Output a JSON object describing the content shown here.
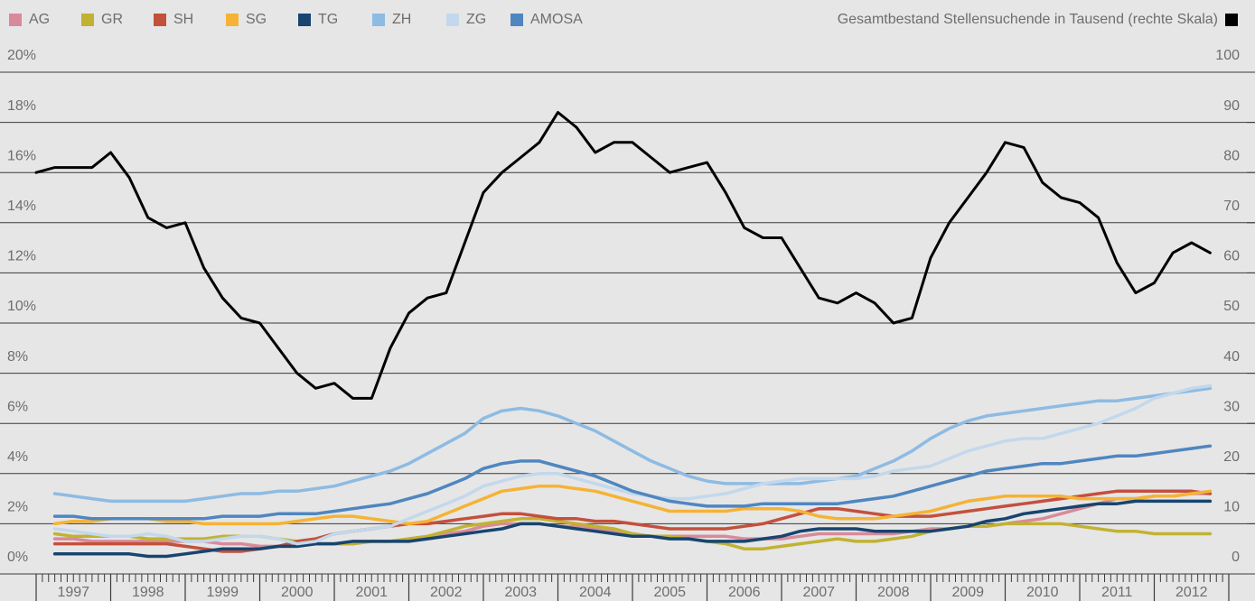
{
  "chart_data": {
    "type": "line",
    "x": [
      1997,
      1997.25,
      1997.5,
      1997.75,
      1998,
      1998.25,
      1998.5,
      1998.75,
      1999,
      1999.25,
      1999.5,
      1999.75,
      2000,
      2000.25,
      2000.5,
      2000.75,
      2001,
      2001.25,
      2001.5,
      2001.75,
      2002,
      2002.25,
      2002.5,
      2002.75,
      2003,
      2003.25,
      2003.5,
      2003.75,
      2004,
      2004.25,
      2004.5,
      2004.75,
      2005,
      2005.25,
      2005.5,
      2005.75,
      2006,
      2006.25,
      2006.5,
      2006.75,
      2007,
      2007.25,
      2007.5,
      2007.75,
      2008,
      2008.25,
      2008.5,
      2008.75,
      2009,
      2009.25,
      2009.5,
      2009.75,
      2010,
      2010.25,
      2010.5,
      2010.75,
      2011,
      2011.25,
      2011.5,
      2011.75,
      2012,
      2012.25,
      2012.5,
      2012.75
    ],
    "xlim": [
      1997,
      2013
    ],
    "xticks": [
      1997,
      1998,
      1999,
      2000,
      2001,
      2002,
      2003,
      2004,
      2005,
      2006,
      2007,
      2008,
      2009,
      2010,
      2011,
      2012,
      2013
    ],
    "x_labels": [
      "1997",
      "1998",
      "1999",
      "2000",
      "2001",
      "2002",
      "2003",
      "2004",
      "2005",
      "2006",
      "2007",
      "2008",
      "2009",
      "2010",
      "2011",
      "2012"
    ],
    "ylim": [
      0,
      20
    ],
    "yticks": [
      {
        "value": 0,
        "label": "0%"
      },
      {
        "value": 2,
        "label": "2%"
      },
      {
        "value": 4,
        "label": "4%"
      },
      {
        "value": 6,
        "label": "6%"
      },
      {
        "value": 8,
        "label": "8%"
      },
      {
        "value": 10,
        "label": "10%"
      },
      {
        "value": 12,
        "label": "12%"
      },
      {
        "value": 14,
        "label": "14%"
      },
      {
        "value": 16,
        "label": "16%"
      },
      {
        "value": 18,
        "label": "18%"
      },
      {
        "value": 20,
        "label": "20%"
      }
    ],
    "y2lim": [
      0,
      100
    ],
    "y2ticks": [
      0,
      10,
      20,
      30,
      40,
      50,
      60,
      70,
      80,
      90,
      100
    ],
    "grid": true,
    "series": [
      {
        "name": "AG",
        "color": "#d98a9a",
        "values": [
          null,
          1.4,
          1.4,
          1.3,
          1.3,
          1.3,
          1.3,
          1.3,
          1.3,
          1.3,
          1.2,
          1.2,
          1.1,
          1.1,
          1.1,
          1.2,
          1.2,
          1.2,
          1.3,
          1.3,
          1.4,
          1.5,
          1.6,
          1.7,
          1.9,
          2.0,
          2.0,
          2.0,
          1.9,
          1.9,
          1.8,
          1.7,
          1.6,
          1.5,
          1.5,
          1.5,
          1.5,
          1.5,
          1.4,
          1.4,
          1.4,
          1.5,
          1.6,
          1.6,
          1.6,
          1.6,
          1.6,
          1.7,
          1.8,
          1.8,
          1.9,
          1.9,
          2.0,
          2.1,
          2.2,
          2.4,
          2.6,
          2.8,
          3.0,
          3.0,
          3.1,
          3.1,
          3.2,
          3.2
        ]
      },
      {
        "name": "GR",
        "color": "#c2b232",
        "values": [
          null,
          1.6,
          1.5,
          1.5,
          1.5,
          1.5,
          1.4,
          1.4,
          1.4,
          1.4,
          1.5,
          1.5,
          1.5,
          1.4,
          1.3,
          1.2,
          1.2,
          1.2,
          1.3,
          1.3,
          1.4,
          1.5,
          1.7,
          1.9,
          2.0,
          2.1,
          2.2,
          2.2,
          2.1,
          2.0,
          1.9,
          1.8,
          1.6,
          1.5,
          1.5,
          1.4,
          1.3,
          1.2,
          1.0,
          1.0,
          1.1,
          1.2,
          1.3,
          1.4,
          1.3,
          1.3,
          1.4,
          1.5,
          1.7,
          1.8,
          1.9,
          1.9,
          2.0,
          2.0,
          2.0,
          2.0,
          1.9,
          1.8,
          1.7,
          1.7,
          1.6,
          1.6,
          1.6,
          1.6
        ]
      },
      {
        "name": "SH",
        "color": "#c4503c",
        "values": [
          null,
          1.2,
          1.2,
          1.2,
          1.2,
          1.2,
          1.2,
          1.2,
          1.1,
          1.0,
          0.9,
          0.9,
          1.0,
          1.1,
          1.3,
          1.4,
          1.6,
          1.7,
          1.8,
          1.9,
          2.0,
          2.0,
          2.1,
          2.2,
          2.3,
          2.4,
          2.4,
          2.3,
          2.2,
          2.2,
          2.1,
          2.1,
          2.0,
          1.9,
          1.8,
          1.8,
          1.8,
          1.8,
          1.9,
          2.0,
          2.2,
          2.4,
          2.6,
          2.6,
          2.5,
          2.4,
          2.3,
          2.3,
          2.3,
          2.4,
          2.5,
          2.6,
          2.7,
          2.8,
          2.9,
          3.0,
          3.1,
          3.2,
          3.3,
          3.3,
          3.3,
          3.3,
          3.3,
          3.2
        ]
      },
      {
        "name": "SG",
        "color": "#f5b335",
        "values": [
          null,
          2.0,
          2.1,
          2.1,
          2.2,
          2.2,
          2.2,
          2.1,
          2.1,
          2.0,
          2.0,
          2.0,
          2.0,
          2.0,
          2.1,
          2.2,
          2.3,
          2.3,
          2.2,
          2.1,
          2.0,
          2.1,
          2.4,
          2.7,
          3.0,
          3.3,
          3.4,
          3.5,
          3.5,
          3.4,
          3.3,
          3.1,
          2.9,
          2.7,
          2.5,
          2.5,
          2.5,
          2.5,
          2.6,
          2.6,
          2.6,
          2.5,
          2.3,
          2.2,
          2.2,
          2.2,
          2.3,
          2.4,
          2.5,
          2.7,
          2.9,
          3.0,
          3.1,
          3.1,
          3.1,
          3.1,
          3.0,
          3.0,
          3.0,
          3.0,
          3.1,
          3.1,
          3.2,
          3.3
        ]
      },
      {
        "name": "TG",
        "color": "#17456f",
        "values": [
          null,
          0.8,
          0.8,
          0.8,
          0.8,
          0.8,
          0.7,
          0.7,
          0.8,
          0.9,
          1.0,
          1.0,
          1.0,
          1.1,
          1.1,
          1.2,
          1.2,
          1.3,
          1.3,
          1.3,
          1.3,
          1.4,
          1.5,
          1.6,
          1.7,
          1.8,
          2.0,
          2.0,
          1.9,
          1.8,
          1.7,
          1.6,
          1.5,
          1.5,
          1.4,
          1.4,
          1.3,
          1.3,
          1.3,
          1.4,
          1.5,
          1.7,
          1.8,
          1.8,
          1.8,
          1.7,
          1.7,
          1.7,
          1.7,
          1.8,
          1.9,
          2.1,
          2.2,
          2.4,
          2.5,
          2.6,
          2.7,
          2.8,
          2.8,
          2.9,
          2.9,
          2.9,
          2.9,
          2.9
        ]
      },
      {
        "name": "ZH",
        "color": "#8dbbe3",
        "values": [
          null,
          3.2,
          3.1,
          3.0,
          2.9,
          2.9,
          2.9,
          2.9,
          2.9,
          3.0,
          3.1,
          3.2,
          3.2,
          3.3,
          3.3,
          3.4,
          3.5,
          3.7,
          3.9,
          4.1,
          4.4,
          4.8,
          5.2,
          5.6,
          6.2,
          6.5,
          6.6,
          6.5,
          6.3,
          6.0,
          5.7,
          5.3,
          4.9,
          4.5,
          4.2,
          3.9,
          3.7,
          3.6,
          3.6,
          3.6,
          3.6,
          3.6,
          3.7,
          3.8,
          3.9,
          4.2,
          4.5,
          4.9,
          5.4,
          5.8,
          6.1,
          6.3,
          6.4,
          6.5,
          6.6,
          6.7,
          6.8,
          6.9,
          6.9,
          7.0,
          7.1,
          7.2,
          7.3,
          7.4
        ]
      },
      {
        "name": "ZG",
        "color": "#c3d8ec",
        "values": [
          null,
          1.8,
          1.7,
          1.6,
          1.5,
          1.5,
          1.6,
          1.5,
          1.3,
          1.3,
          1.4,
          1.5,
          1.5,
          1.4,
          1.2,
          1.3,
          1.6,
          1.7,
          1.8,
          1.9,
          2.2,
          2.5,
          2.8,
          3.1,
          3.5,
          3.7,
          3.9,
          4.0,
          4.0,
          3.8,
          3.6,
          3.4,
          3.2,
          3.1,
          3.0,
          3.0,
          3.1,
          3.2,
          3.4,
          3.6,
          3.7,
          3.8,
          3.8,
          3.8,
          3.8,
          3.9,
          4.1,
          4.2,
          4.3,
          4.6,
          4.9,
          5.1,
          5.3,
          5.4,
          5.4,
          5.6,
          5.8,
          6.0,
          6.3,
          6.6,
          7.0,
          7.2,
          7.4,
          7.5
        ]
      },
      {
        "name": "AMOSA",
        "color": "#4f86c0",
        "values": [
          null,
          2.3,
          2.3,
          2.2,
          2.2,
          2.2,
          2.2,
          2.2,
          2.2,
          2.2,
          2.3,
          2.3,
          2.3,
          2.4,
          2.4,
          2.4,
          2.5,
          2.6,
          2.7,
          2.8,
          3.0,
          3.2,
          3.5,
          3.8,
          4.2,
          4.4,
          4.5,
          4.5,
          4.3,
          4.1,
          3.9,
          3.6,
          3.3,
          3.1,
          2.9,
          2.8,
          2.7,
          2.7,
          2.7,
          2.8,
          2.8,
          2.8,
          2.8,
          2.8,
          2.9,
          3.0,
          3.1,
          3.3,
          3.5,
          3.7,
          3.9,
          4.1,
          4.2,
          4.3,
          4.4,
          4.4,
          4.5,
          4.6,
          4.7,
          4.7,
          4.8,
          4.9,
          5.0,
          5.1
        ]
      },
      {
        "name": "Gesamtbestand Stellensuchende in Tausend (rechte Skala)",
        "color": "#000000",
        "axis": "y2",
        "values": [
          80,
          81,
          81,
          81,
          84,
          79,
          71,
          69,
          70,
          61,
          55,
          51,
          50,
          45,
          40,
          37,
          38,
          35,
          35,
          45,
          52,
          55,
          56,
          66,
          76,
          80,
          83,
          86,
          92,
          89,
          84,
          86,
          86,
          83,
          80,
          81,
          82,
          76,
          69,
          67,
          67,
          61,
          55,
          54,
          56,
          54,
          50,
          51,
          63,
          70,
          75,
          80,
          86,
          85,
          78,
          75,
          74,
          71,
          62,
          56,
          58,
          64,
          66,
          64
        ]
      }
    ]
  }
}
